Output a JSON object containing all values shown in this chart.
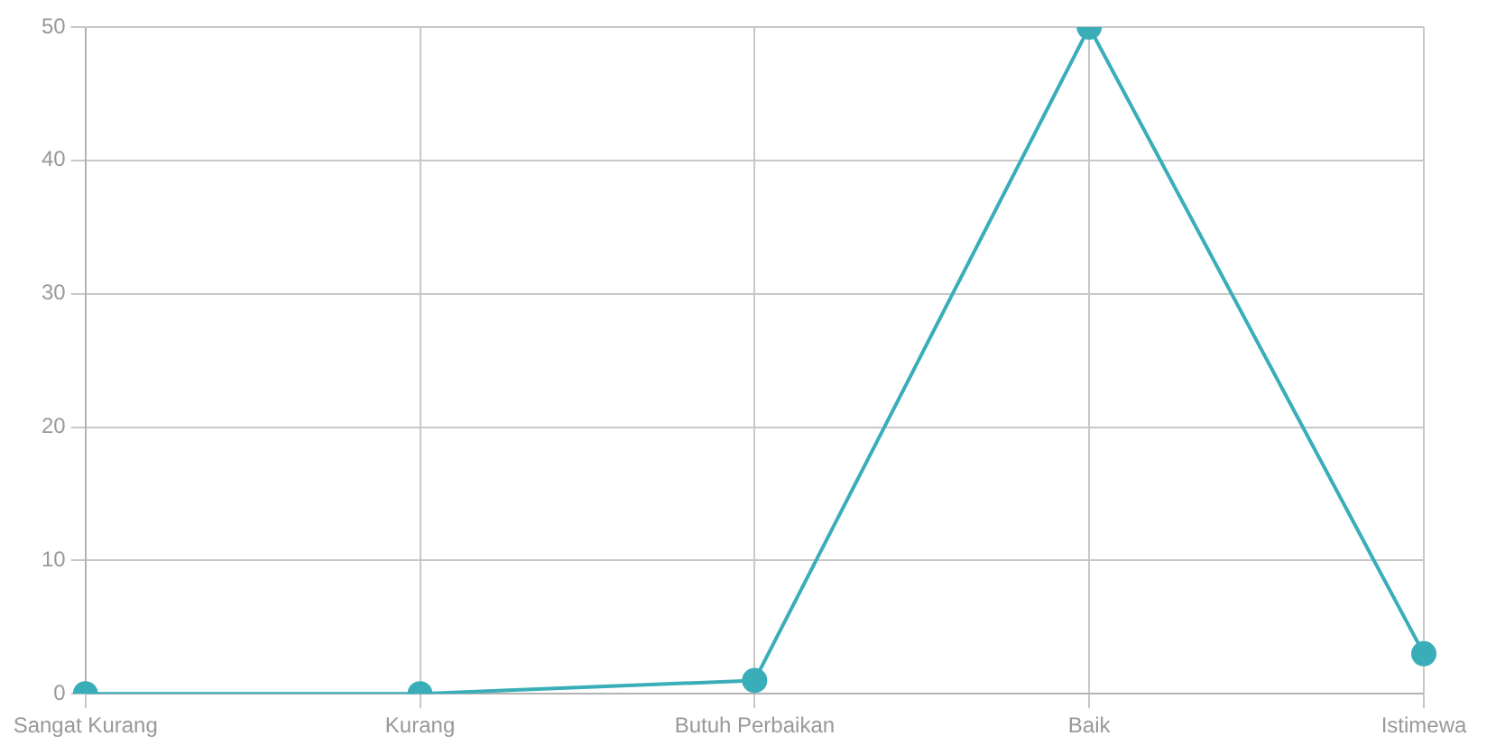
{
  "chart_data": {
    "type": "line",
    "categories": [
      "Sangat Kurang",
      "Kurang",
      "Butuh Perbaikan",
      "Baik",
      "Istimewa"
    ],
    "series": [
      {
        "color": "#3aaeb8",
        "values": [
          0,
          0,
          1,
          50,
          3
        ]
      }
    ],
    "ylim": [
      0,
      50
    ],
    "yticks": [
      0,
      10,
      20,
      30,
      40,
      50
    ],
    "grid": true,
    "legend": false,
    "marker": "circle",
    "line_style": "solid"
  }
}
